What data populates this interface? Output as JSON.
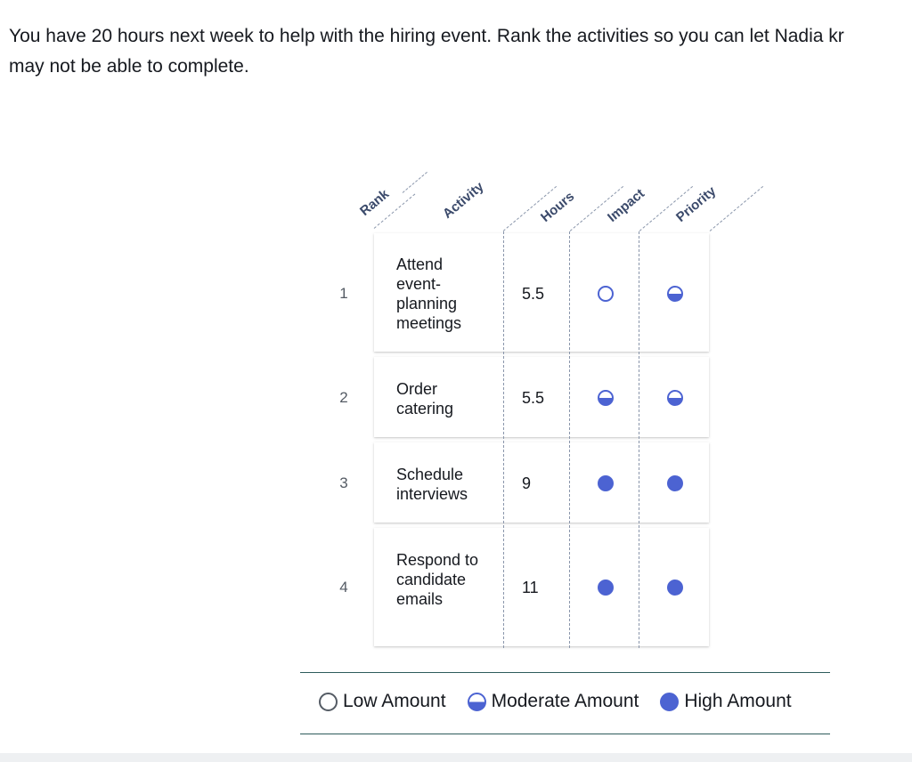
{
  "instructions": {
    "line1": "You have 20 hours next week to help with the hiring event. Rank the activities so you can let Nadia kr",
    "line2": "may not be able to complete."
  },
  "table": {
    "headers": {
      "rank": "Rank",
      "activity": "Activity",
      "hours": "Hours",
      "impact": "Impact",
      "priority": "Priority"
    },
    "rows": [
      {
        "rank": "1",
        "activity": "Attend event-planning meetings",
        "hours": "5.5",
        "impact": "low",
        "priority": "moderate"
      },
      {
        "rank": "2",
        "activity": "Order catering",
        "hours": "5.5",
        "impact": "moderate",
        "priority": "moderate"
      },
      {
        "rank": "3",
        "activity": "Schedule interviews",
        "hours": "9",
        "impact": "high",
        "priority": "high"
      },
      {
        "rank": "4",
        "activity": "Respond to candidate emails",
        "hours": "11",
        "impact": "high",
        "priority": "high"
      }
    ]
  },
  "legend": {
    "low": "Low Amount",
    "moderate": "Moderate Amount",
    "high": "High Amount"
  },
  "colors": {
    "accent": "#4c63d2"
  }
}
